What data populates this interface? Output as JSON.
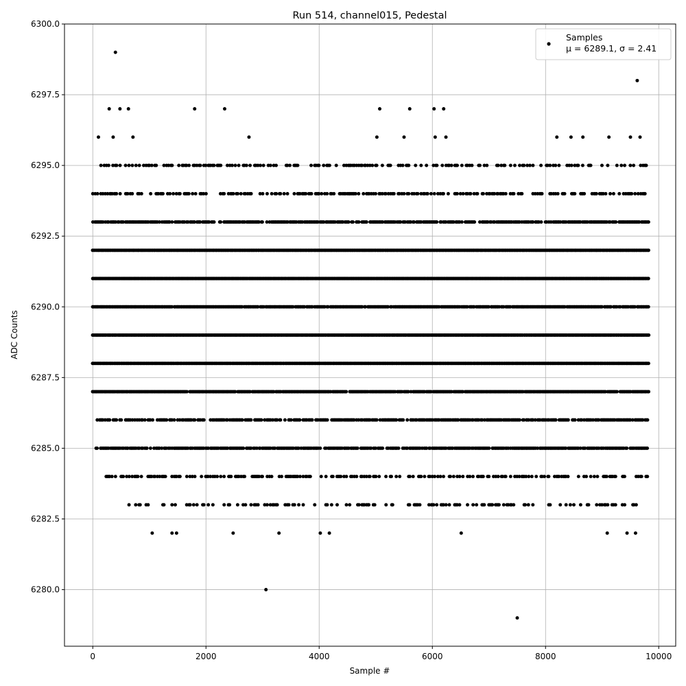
{
  "chart_data": {
    "type": "scatter",
    "title": "Run 514, channel015, Pedestal",
    "xlabel": "Sample #",
    "ylabel": "ADC Counts",
    "xlim": [
      -500,
      10300
    ],
    "ylim": [
      6278,
      6300
    ],
    "x_ticks": [
      0,
      2000,
      4000,
      6000,
      8000,
      10000
    ],
    "x_tick_labels": [
      "0",
      "2000",
      "4000",
      "6000",
      "8000",
      "10000"
    ],
    "y_ticks": [
      6280.0,
      6282.5,
      6285.0,
      6287.5,
      6290.0,
      6292.5,
      6295.0,
      6297.5,
      6300.0
    ],
    "y_tick_labels": [
      "6280.0",
      "6282.5",
      "6285.0",
      "6287.5",
      "6290.0",
      "6292.5",
      "6295.0",
      "6297.5",
      "6300.0"
    ],
    "grid": true,
    "legend_position": "top-right",
    "marker_color": "#000000",
    "series": [
      {
        "name": "Samples",
        "stats_label": "μ = 6289.1, σ = 2.41",
        "points": [
          [
            400,
            6299
          ],
          [
            9620,
            6298
          ],
          [
            290,
            6297
          ],
          [
            480,
            6297
          ],
          [
            630,
            6297
          ],
          [
            1800,
            6297
          ],
          [
            2330,
            6297
          ],
          [
            5070,
            6297
          ],
          [
            5600,
            6297
          ],
          [
            6030,
            6297
          ],
          [
            6200,
            6297
          ],
          [
            100,
            6296
          ],
          [
            360,
            6296
          ],
          [
            710,
            6296
          ],
          [
            2760,
            6296
          ],
          [
            5020,
            6296
          ],
          [
            5500,
            6296
          ],
          [
            6050,
            6296
          ],
          [
            6240,
            6296
          ],
          [
            8200,
            6296
          ],
          [
            8450,
            6296
          ],
          [
            8660,
            6296
          ],
          [
            9120,
            6296
          ],
          [
            9500,
            6296
          ],
          [
            9670,
            6296
          ],
          [
            3060,
            6280
          ],
          [
            7500,
            6279
          ],
          [
            1050,
            6282
          ],
          [
            1400,
            6282
          ],
          [
            1480,
            6282
          ],
          [
            2480,
            6282
          ],
          [
            3290,
            6282
          ],
          [
            4020,
            6282
          ],
          [
            4180,
            6282
          ],
          [
            6510,
            6282
          ],
          [
            9090,
            6282
          ],
          [
            9440,
            6282
          ],
          [
            9590,
            6282
          ]
        ],
        "row_level_sampling": {
          "6295": {
            "x_range": [
              100,
              9800
            ],
            "density": 0.35
          },
          "6294": {
            "x_range": [
              0,
              9800
            ],
            "density": 0.45
          },
          "6293": {
            "x_range": [
              0,
              9820
            ],
            "density": 0.8
          },
          "6292": {
            "x_range": [
              0,
              9820
            ],
            "density": 1.0
          },
          "6291": {
            "x_range": [
              0,
              9820
            ],
            "density": 1.0
          },
          "6290": {
            "x_range": [
              0,
              9820
            ],
            "density": 0.95
          },
          "6289": {
            "x_range": [
              0,
              9820
            ],
            "density": 1.0
          },
          "6288": {
            "x_range": [
              0,
              9820
            ],
            "density": 1.0
          },
          "6287": {
            "x_range": [
              0,
              9820
            ],
            "density": 0.95
          },
          "6286": {
            "x_range": [
              60,
              9800
            ],
            "density": 0.75
          },
          "6285": {
            "x_range": [
              60,
              9800
            ],
            "density": 0.8
          },
          "6284": {
            "x_range": [
              200,
              9800
            ],
            "density": 0.45
          },
          "6283": {
            "x_range": [
              500,
              9600
            ],
            "density": 0.3
          }
        }
      }
    ]
  }
}
